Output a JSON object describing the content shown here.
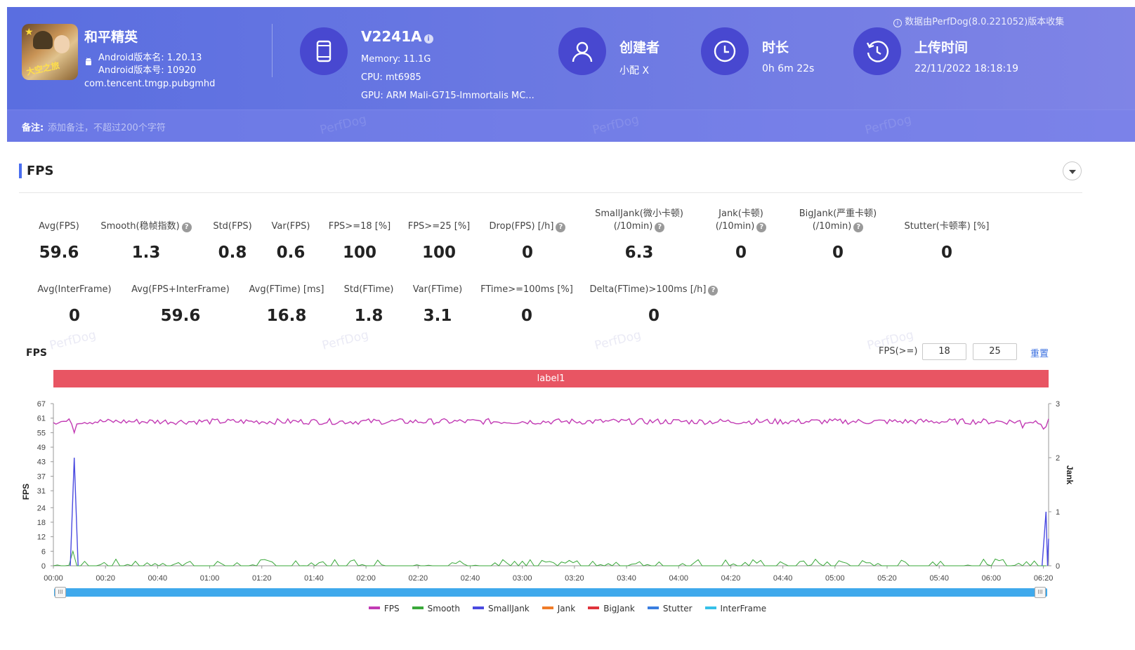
{
  "header": {
    "game_name": "和平精英",
    "game_icon_caption": "大空之旅",
    "android_version_name": "Android版本名: 1.20.13",
    "android_version_code": "Android版本号: 10920",
    "package_name": "com.tencent.tmgp.pubgmhd",
    "device_name": "V2241A",
    "device_info_mark": "i",
    "memory": "Memory: 11.1G",
    "cpu": "CPU: mt6985",
    "gpu": "GPU: ARM Mali-G715-Immortalis MC...",
    "creator_title": "创建者",
    "creator_value": "小配 X",
    "duration_title": "时长",
    "duration_value": "0h 6m 22s",
    "upload_title": "上传时间",
    "upload_value": "22/11/2022 18:18:19",
    "collect_note": "数据由PerfDog(8.0.221052)版本收集",
    "remark_label": "备注:",
    "remark_placeholder": "添加备注，不超过200个字符",
    "watermark": "PerfDog"
  },
  "section": {
    "title": "FPS",
    "help_mark": "?"
  },
  "metrics_row1": [
    {
      "label": "Avg(FPS)",
      "value": "59.6",
      "help": false
    },
    {
      "label": "Smooth(稳帧指数)",
      "value": "1.3",
      "help": true
    },
    {
      "label": "Std(FPS)",
      "value": "0.8",
      "help": false
    },
    {
      "label": "Var(FPS)",
      "value": "0.6",
      "help": false
    },
    {
      "label": "FPS>=18 [%]",
      "value": "100",
      "help": false
    },
    {
      "label": "FPS>=25 [%]",
      "value": "100",
      "help": false
    },
    {
      "label": "Drop(FPS) [/h]",
      "value": "0",
      "help": true
    },
    {
      "label": "SmallJank(微小卡顿)",
      "label2": "(/10min)",
      "value": "6.3",
      "help": true
    },
    {
      "label": "Jank(卡顿)",
      "label2": "(/10min)",
      "value": "0",
      "help": true
    },
    {
      "label": "BigJank(严重卡顿)",
      "label2": "(/10min)",
      "value": "0",
      "help": true
    },
    {
      "label": "Stutter(卡顿率) [%]",
      "value": "0",
      "help": false
    }
  ],
  "metrics_row2": [
    {
      "label": "Avg(InterFrame)",
      "value": "0",
      "help": false
    },
    {
      "label": "Avg(FPS+InterFrame)",
      "value": "59.6",
      "help": false
    },
    {
      "label": "Avg(FTime) [ms]",
      "value": "16.8",
      "help": false
    },
    {
      "label": "Std(FTime)",
      "value": "1.8",
      "help": false
    },
    {
      "label": "Var(FTime)",
      "value": "3.1",
      "help": false
    },
    {
      "label": "FTime>=100ms [%]",
      "value": "0",
      "help": false
    },
    {
      "label": "Delta(FTime)>100ms [/h]",
      "value": "0",
      "help": true
    }
  ],
  "chart_controls": {
    "title": "FPS",
    "threshold_label": "FPS(>=)",
    "threshold_1": "18",
    "threshold_2": "25",
    "reset_label": "重置",
    "label_bar": "label1",
    "slider_grip": "III"
  },
  "chart_data": {
    "type": "line",
    "x_unit": "time mm:ss",
    "x_range": [
      "00:00",
      "06:22"
    ],
    "x_ticks": [
      "00:00",
      "00:20",
      "00:40",
      "01:00",
      "01:20",
      "01:40",
      "02:00",
      "02:20",
      "02:40",
      "03:00",
      "03:20",
      "03:40",
      "04:00",
      "04:20",
      "04:40",
      "05:00",
      "05:20",
      "05:40",
      "06:00",
      "06:20"
    ],
    "ylabel_left": "FPS",
    "ylim_left": [
      0,
      67
    ],
    "yticks_left": [
      0,
      6,
      12,
      18,
      24,
      31,
      37,
      43,
      49,
      55,
      61,
      67
    ],
    "ylabel_right": "Jank",
    "ylim_right": [
      0,
      3
    ],
    "yticks_right": [
      0,
      1,
      2,
      3
    ],
    "series": [
      {
        "name": "FPS",
        "axis": "left",
        "color": "#c23bb4",
        "typical_value": 59.6,
        "range": [
          55,
          61
        ],
        "dips": [
          {
            "t": 8,
            "v": 55
          },
          {
            "t": 372,
            "v": 57
          },
          {
            "t": 380,
            "v": 56
          }
        ]
      },
      {
        "name": "Smooth",
        "axis": "left",
        "color": "#3aa83a",
        "typical_value": 1.3,
        "range": [
          0,
          6
        ],
        "spikes": [
          {
            "t": 8,
            "v": 6
          }
        ]
      },
      {
        "name": "SmallJank",
        "axis": "right",
        "color": "#4a4ae0",
        "spikes": [
          {
            "t": 8,
            "v": 2
          },
          {
            "t": 381,
            "v": 1
          }
        ]
      },
      {
        "name": "Jank",
        "axis": "right",
        "color": "#f07c28"
      },
      {
        "name": "BigJank",
        "axis": "right",
        "color": "#e0343c"
      },
      {
        "name": "Stutter",
        "axis": "right",
        "color": "#3a7ee0"
      },
      {
        "name": "InterFrame",
        "axis": "left",
        "color": "#36c0e8"
      }
    ]
  }
}
